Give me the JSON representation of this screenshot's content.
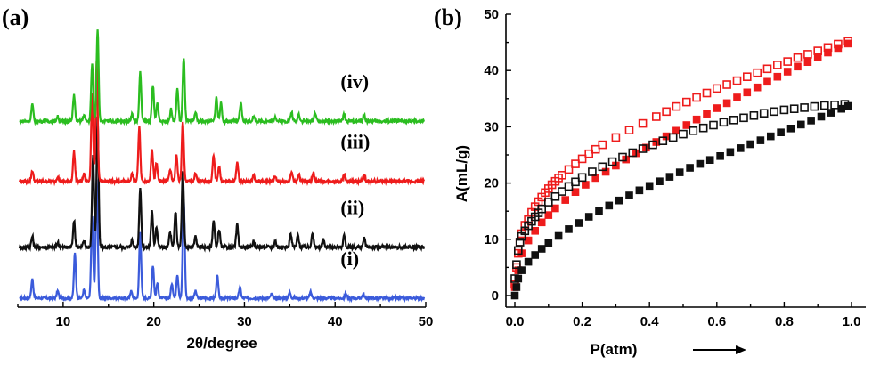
{
  "chart_data": [
    {
      "panel": "(a)",
      "type": "line",
      "title": "",
      "xlabel": "2θ/degree",
      "ylabel": "",
      "xlim": [
        5,
        50
      ],
      "xticks": [
        10,
        20,
        30,
        40,
        50
      ],
      "ylim": [
        0,
        4.6
      ],
      "yticks_shown": false,
      "grid": false,
      "legend": "none",
      "series": [
        {
          "name": "(i)",
          "color": "#3b5bdb",
          "offset": 0.0,
          "noise": 0.02,
          "peaks": [
            [
              6.6,
              0.32
            ],
            [
              9.4,
              0.12
            ],
            [
              11.3,
              0.75
            ],
            [
              12.3,
              0.14
            ],
            [
              13.2,
              1.35
            ],
            [
              13.7,
              2.0
            ],
            [
              17.5,
              0.12
            ],
            [
              18.5,
              1.1
            ],
            [
              19.9,
              0.55
            ],
            [
              20.4,
              0.25
            ],
            [
              22.0,
              0.25
            ],
            [
              22.6,
              0.4
            ],
            [
              23.3,
              1.65
            ],
            [
              24.6,
              0.12
            ],
            [
              27.0,
              0.38
            ],
            [
              29.5,
              0.18
            ],
            [
              33.0,
              0.07
            ],
            [
              35.0,
              0.1
            ],
            [
              37.3,
              0.1
            ],
            [
              41.2,
              0.08
            ],
            [
              43.1,
              0.07
            ]
          ]
        },
        {
          "name": "(ii)",
          "color": "#111111",
          "offset": 0.85,
          "noise": 0.03,
          "peaks": [
            [
              6.6,
              0.18
            ],
            [
              9.4,
              0.08
            ],
            [
              11.2,
              0.45
            ],
            [
              12.3,
              0.1
            ],
            [
              13.3,
              1.55
            ],
            [
              13.8,
              2.15
            ],
            [
              17.6,
              0.12
            ],
            [
              18.5,
              1.0
            ],
            [
              19.8,
              0.6
            ],
            [
              20.3,
              0.35
            ],
            [
              21.8,
              0.25
            ],
            [
              22.4,
              0.6
            ],
            [
              23.2,
              1.25
            ],
            [
              24.6,
              0.18
            ],
            [
              26.6,
              0.45
            ],
            [
              27.2,
              0.3
            ],
            [
              29.2,
              0.38
            ],
            [
              31.0,
              0.1
            ],
            [
              33.4,
              0.1
            ],
            [
              35.1,
              0.22
            ],
            [
              35.9,
              0.2
            ],
            [
              37.5,
              0.25
            ],
            [
              38.7,
              0.12
            ],
            [
              41.0,
              0.2
            ],
            [
              43.2,
              0.15
            ]
          ]
        },
        {
          "name": "(iii)",
          "color": "#ee1c1c",
          "offset": 1.95,
          "noise": 0.025,
          "peaks": [
            [
              6.6,
              0.18
            ],
            [
              9.4,
              0.08
            ],
            [
              11.2,
              0.5
            ],
            [
              12.3,
              0.12
            ],
            [
              13.2,
              1.45
            ],
            [
              13.7,
              2.0
            ],
            [
              17.6,
              0.12
            ],
            [
              18.4,
              0.9
            ],
            [
              19.8,
              0.55
            ],
            [
              20.3,
              0.3
            ],
            [
              21.8,
              0.2
            ],
            [
              22.5,
              0.45
            ],
            [
              23.2,
              1.0
            ],
            [
              24.6,
              0.12
            ],
            [
              26.6,
              0.42
            ],
            [
              27.2,
              0.25
            ],
            [
              29.2,
              0.32
            ],
            [
              31.0,
              0.1
            ],
            [
              33.4,
              0.08
            ],
            [
              35.2,
              0.15
            ],
            [
              36.0,
              0.12
            ],
            [
              37.6,
              0.15
            ],
            [
              41.0,
              0.12
            ],
            [
              43.2,
              0.1
            ]
          ]
        },
        {
          "name": "(iv)",
          "color": "#2bbd20",
          "offset": 2.95,
          "noise": 0.025,
          "peaks": [
            [
              6.6,
              0.28
            ],
            [
              9.4,
              0.08
            ],
            [
              11.2,
              0.45
            ],
            [
              12.3,
              0.1
            ],
            [
              13.2,
              0.95
            ],
            [
              13.8,
              1.55
            ],
            [
              17.6,
              0.12
            ],
            [
              18.5,
              0.82
            ],
            [
              19.9,
              0.6
            ],
            [
              20.4,
              0.3
            ],
            [
              21.9,
              0.2
            ],
            [
              22.6,
              0.55
            ],
            [
              23.3,
              1.05
            ],
            [
              24.6,
              0.15
            ],
            [
              26.9,
              0.4
            ],
            [
              27.4,
              0.3
            ],
            [
              29.6,
              0.3
            ],
            [
              31.0,
              0.08
            ],
            [
              33.4,
              0.08
            ],
            [
              35.2,
              0.15
            ],
            [
              36.0,
              0.12
            ],
            [
              37.8,
              0.15
            ],
            [
              41.0,
              0.12
            ],
            [
              43.2,
              0.1
            ]
          ]
        }
      ]
    },
    {
      "panel": "(b)",
      "type": "scatter",
      "title": "",
      "xlabel": "P(atm)",
      "ylabel": "A(mL/g)",
      "xlim": [
        0.0,
        1.0
      ],
      "xticks": [
        "0.0",
        "0.2",
        "0.4",
        "0.6",
        "0.8",
        "1.0"
      ],
      "ylim": [
        0,
        50
      ],
      "yticks": [
        "0",
        "10",
        "20",
        "30",
        "40",
        "50"
      ],
      "grid": false,
      "legend": "none",
      "series": [
        {
          "color": "#ee1c1c",
          "marker": "hollow-square",
          "x": [
            0.0,
            0.005,
            0.01,
            0.015,
            0.02,
            0.03,
            0.04,
            0.05,
            0.06,
            0.07,
            0.08,
            0.09,
            0.1,
            0.11,
            0.12,
            0.13,
            0.14,
            0.16,
            0.18,
            0.2,
            0.22,
            0.24,
            0.26,
            0.3,
            0.34,
            0.38,
            0.42,
            0.45,
            0.48,
            0.51,
            0.54,
            0.57,
            0.6,
            0.63,
            0.66,
            0.69,
            0.72,
            0.75,
            0.78,
            0.81,
            0.84,
            0.87,
            0.9,
            0.93,
            0.96,
            0.99
          ],
          "y": [
            2,
            5,
            7.5,
            9.5,
            11,
            12.5,
            13.5,
            14.8,
            15.8,
            16.7,
            17.5,
            18.3,
            19,
            19.7,
            20.3,
            20.9,
            21.4,
            22.4,
            23.4,
            24.3,
            25.2,
            26,
            26.8,
            28.1,
            29.4,
            30.6,
            31.8,
            32.7,
            33.6,
            34.4,
            35.2,
            36,
            36.8,
            37.5,
            38.2,
            38.9,
            39.6,
            40.3,
            41,
            41.6,
            42.3,
            42.9,
            43.5,
            44.1,
            44.7,
            45.2
          ]
        },
        {
          "color": "#ee1c1c",
          "marker": "filled-square",
          "x": [
            0.0,
            0.01,
            0.02,
            0.04,
            0.06,
            0.08,
            0.1,
            0.12,
            0.15,
            0.18,
            0.21,
            0.24,
            0.27,
            0.3,
            0.33,
            0.36,
            0.39,
            0.42,
            0.45,
            0.48,
            0.51,
            0.54,
            0.57,
            0.6,
            0.63,
            0.66,
            0.69,
            0.72,
            0.75,
            0.78,
            0.81,
            0.84,
            0.87,
            0.9,
            0.93,
            0.96,
            0.99
          ],
          "y": [
            1.5,
            4.5,
            7.5,
            9.8,
            11.5,
            13,
            14.3,
            15.5,
            17,
            18.4,
            19.7,
            20.9,
            22,
            23.1,
            24.2,
            25.3,
            26.3,
            27.3,
            28.3,
            29.3,
            30.3,
            31.3,
            32.3,
            33.3,
            34.2,
            35.2,
            36.1,
            37,
            38,
            38.9,
            39.8,
            40.7,
            41.5,
            42.4,
            43.2,
            44,
            44.8
          ]
        },
        {
          "color": "#111111",
          "marker": "hollow-square",
          "x": [
            0.0,
            0.005,
            0.01,
            0.015,
            0.02,
            0.03,
            0.04,
            0.05,
            0.06,
            0.07,
            0.08,
            0.1,
            0.12,
            0.14,
            0.16,
            0.18,
            0.2,
            0.23,
            0.26,
            0.29,
            0.32,
            0.35,
            0.38,
            0.41,
            0.44,
            0.47,
            0.5,
            0.53,
            0.56,
            0.59,
            0.62,
            0.65,
            0.68,
            0.71,
            0.74,
            0.77,
            0.8,
            0.83,
            0.86,
            0.89,
            0.92,
            0.95,
            0.98
          ],
          "y": [
            3,
            5.5,
            8,
            9.5,
            10.5,
            11.5,
            12.4,
            13.2,
            14,
            14.7,
            15.4,
            16.6,
            17.6,
            18.5,
            19.4,
            20.2,
            21,
            22,
            22.9,
            23.8,
            24.6,
            25.4,
            26.1,
            26.8,
            27.5,
            28.1,
            28.7,
            29.3,
            29.8,
            30.3,
            30.8,
            31.2,
            31.6,
            32,
            32.4,
            32.7,
            33,
            33.2,
            33.4,
            33.6,
            33.8,
            33.9,
            34
          ]
        },
        {
          "color": "#111111",
          "marker": "filled-square",
          "x": [
            0.0,
            0.005,
            0.01,
            0.02,
            0.04,
            0.06,
            0.08,
            0.1,
            0.13,
            0.16,
            0.19,
            0.22,
            0.25,
            0.28,
            0.31,
            0.34,
            0.37,
            0.4,
            0.43,
            0.46,
            0.49,
            0.52,
            0.55,
            0.58,
            0.61,
            0.64,
            0.67,
            0.7,
            0.73,
            0.76,
            0.79,
            0.82,
            0.85,
            0.88,
            0.91,
            0.94,
            0.97,
            0.99
          ],
          "y": [
            0,
            1.5,
            3,
            4.5,
            6,
            7.2,
            8.3,
            9.3,
            10.6,
            11.8,
            12.9,
            14,
            15,
            16,
            16.9,
            17.8,
            18.7,
            19.5,
            20.3,
            21.1,
            21.9,
            22.7,
            23.4,
            24.1,
            24.8,
            25.5,
            26.2,
            26.9,
            27.6,
            28.3,
            29,
            29.7,
            30.4,
            31.1,
            31.8,
            32.5,
            33.2,
            33.7
          ]
        }
      ]
    }
  ]
}
